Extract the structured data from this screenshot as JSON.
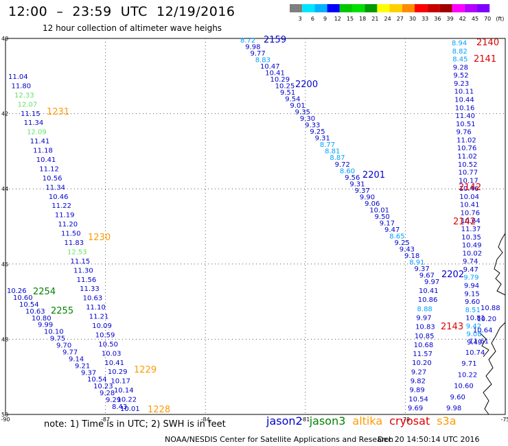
{
  "header": {
    "title": "12:00  –  23:59  UTC  12/19/2016",
    "subtitle": "12 hour collection of altimeter wave heighs"
  },
  "colorbar": {
    "labels": [
      "3",
      "6",
      "9",
      "12",
      "15",
      "18",
      "21",
      "24",
      "27",
      "30",
      "33",
      "36",
      "39",
      "42",
      "45",
      "70",
      "(ft)"
    ],
    "colors": [
      "#7f7f7f",
      "#00e5ff",
      "#00b2ff",
      "#0000ff",
      "#00c800",
      "#00e000",
      "#009b00",
      "#ffff00",
      "#ffd000",
      "#ff8c00",
      "#ff0000",
      "#c80000",
      "#a00000",
      "#ff00ff",
      "#b400ff",
      "#7f00ff"
    ]
  },
  "axes": {
    "lat_labels": [
      "40",
      "42",
      "44",
      "46",
      "48",
      "50"
    ],
    "lon_labels": [
      "-90",
      "-87",
      "-84",
      "-81",
      "-78",
      "-75"
    ]
  },
  "satellite_colors": {
    "jason2": "#0000cc",
    "jason2_light": "#00a0ff",
    "jason3": "#008000",
    "jason3_light": "#66e066",
    "altika": "#ff9900",
    "cryosat": "#dd0000",
    "s3a": "#ff9900"
  },
  "tracks": [
    {
      "time": "1231",
      "sat": "altika"
    },
    {
      "time": "1230",
      "sat": "altika"
    },
    {
      "time": "2254",
      "sat": "jason3"
    },
    {
      "time": "2255",
      "sat": "jason3"
    },
    {
      "time": "1229",
      "sat": "altika"
    },
    {
      "time": "1228",
      "sat": "altika"
    },
    {
      "time": "2159",
      "sat": "jason2"
    },
    {
      "time": "2200",
      "sat": "jason2"
    },
    {
      "time": "2201",
      "sat": "jason2"
    },
    {
      "time": "2202",
      "sat": "jason2"
    },
    {
      "time": "2140",
      "sat": "cryosat"
    },
    {
      "time": "2141",
      "sat": "cryosat"
    },
    {
      "time": "2142",
      "sat": "cryosat"
    },
    {
      "time": "2142",
      "sat": "cryosat"
    },
    {
      "time": "2143",
      "sat": "cryosat"
    }
  ],
  "track_a": [
    "11.04",
    "11.80",
    "12.33",
    "12.07",
    "11.15",
    "11.34",
    "12.09",
    "11.41",
    "11.18",
    "10.41",
    "11.12",
    "10.56",
    "11.34",
    "10.46",
    "11.22",
    "11.19",
    "11.20",
    "11.50",
    "11.83",
    "12.53",
    "11.15",
    "11.30",
    "11.56",
    "11.33",
    "10.63",
    "11.10",
    "11.21",
    "10.09",
    "10.59",
    "10.50",
    "10.03",
    "10.41",
    "10.29",
    "10.17",
    "10.14",
    "10.22",
    "10.01"
  ],
  "track_a_light": [
    2,
    3,
    6,
    19
  ],
  "track_b": [
    "10.26",
    "10.60",
    "10.54",
    "10.63",
    "10.80",
    "9.99",
    "10.10",
    "9.75",
    "9.70",
    "9.77",
    "9.14",
    "9.21",
    "9.37",
    "10.54",
    "10.23",
    "9.28",
    "9.29",
    "8.43"
  ],
  "track_c": [
    "8.72",
    "9.98",
    "9.77",
    "8.83",
    "10.47",
    "10.41",
    "10.29",
    "10.25",
    "9.51",
    "9.54",
    "9.01",
    "9.35",
    "9.30",
    "9.33",
    "9.25",
    "9.31",
    "8.77",
    "8.81",
    "8.87",
    "9.72",
    "8.60",
    "9.56",
    "9.31",
    "9.37",
    "9.90",
    "9.06",
    "10.01",
    "9.50",
    "9.17",
    "9.47",
    "8.65",
    "9.25",
    "9.43",
    "9.18",
    "8.91",
    "9.37",
    "9.67",
    "9.97"
  ],
  "track_c_light": [
    0,
    3,
    16,
    17,
    18,
    20,
    30,
    34
  ],
  "track_d": [
    "8.94",
    "8.82",
    "8.45",
    "9.28",
    "9.52",
    "9.23",
    "10.11",
    "10.44",
    "10.16",
    "11.40",
    "10.51",
    "9.76",
    "11.02",
    "10.76",
    "11.02",
    "10.52",
    "10.77",
    "10.17",
    "10.46",
    "10.04",
    "10.41",
    "10.76",
    "10.64",
    "11.37",
    "10.35",
    "10.49",
    "10.02",
    "9.74",
    "9.47",
    "9.79",
    "9.94",
    "9.15",
    "9.60",
    "8.51",
    "10.81",
    "9.42",
    "9.08",
    "9.49"
  ],
  "track_d_light": [
    0,
    1,
    2,
    29,
    33,
    35,
    36
  ],
  "track_e": [
    "10.41",
    "10.86",
    "8.88",
    "9.97",
    "10.83",
    "10.85",
    "10.68",
    "11.57",
    "10.20",
    "9.27",
    "9.82",
    "9.89",
    "10.54",
    "9.69"
  ],
  "track_e_light": [
    2
  ],
  "track_f": [
    "10.88",
    "10.20",
    "10.64",
    "11.61",
    "10.74",
    "9.71",
    "10.22",
    "10.60",
    "9.60",
    "9.98"
  ],
  "notes": {
    "bottom": "note:  1) Time is in UTC;  2) SWH is in feet",
    "credit": "NOAA/NESDIS Center for Satellite Applications and Research",
    "stamp": "Dec 20 14:50:14 UTC 2016"
  },
  "legend": [
    {
      "name": "jason2",
      "color": "#0000cc"
    },
    {
      "name": "jason3",
      "color": "#008000"
    },
    {
      "name": "altika",
      "color": "#ff9900"
    },
    {
      "name": "cryosat",
      "color": "#dd0000"
    },
    {
      "name": "s3a",
      "color": "#ff9900"
    }
  ]
}
